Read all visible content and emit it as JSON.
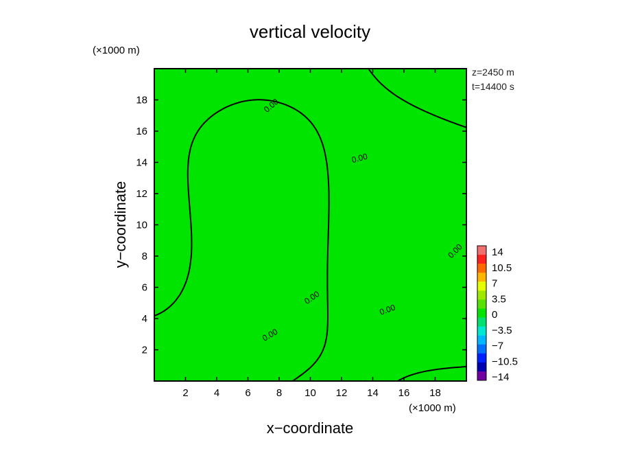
{
  "chart_data": {
    "type": "heatmap",
    "title": "vertical velocity",
    "xlabel": "x−coordinate",
    "ylabel": "y−coordinate",
    "x_unit": "(×1000 m)",
    "y_unit": "(×1000 m)",
    "xlim": [
      0,
      20
    ],
    "ylim": [
      0,
      20
    ],
    "x_ticks": [
      "2",
      "4",
      "6",
      "8",
      "10",
      "12",
      "14",
      "16",
      "18"
    ],
    "y_ticks": [
      "2",
      "4",
      "6",
      "8",
      "10",
      "12",
      "14",
      "16",
      "18"
    ],
    "info_lines": [
      "z=2450  m",
      "t=14400  s"
    ],
    "field_value_range": [
      -3.5,
      3.5
    ],
    "field_fill_color": "#00e400",
    "contour_level_label": "0.00",
    "colorbar": {
      "labels": [
        "14",
        "10.5",
        "7",
        "3.5",
        "0",
        "−3.5",
        "−7",
        "−10.5",
        "−14"
      ],
      "colors": [
        "#f07070",
        "#ff2020",
        "#ff6a00",
        "#ffb400",
        "#e6ff00",
        "#a0e800",
        "#58e000",
        "#00e400",
        "#00e070",
        "#00e8d0",
        "#00b8ff",
        "#0070ff",
        "#0020ff",
        "#0000b0",
        "#7000a0"
      ]
    }
  }
}
